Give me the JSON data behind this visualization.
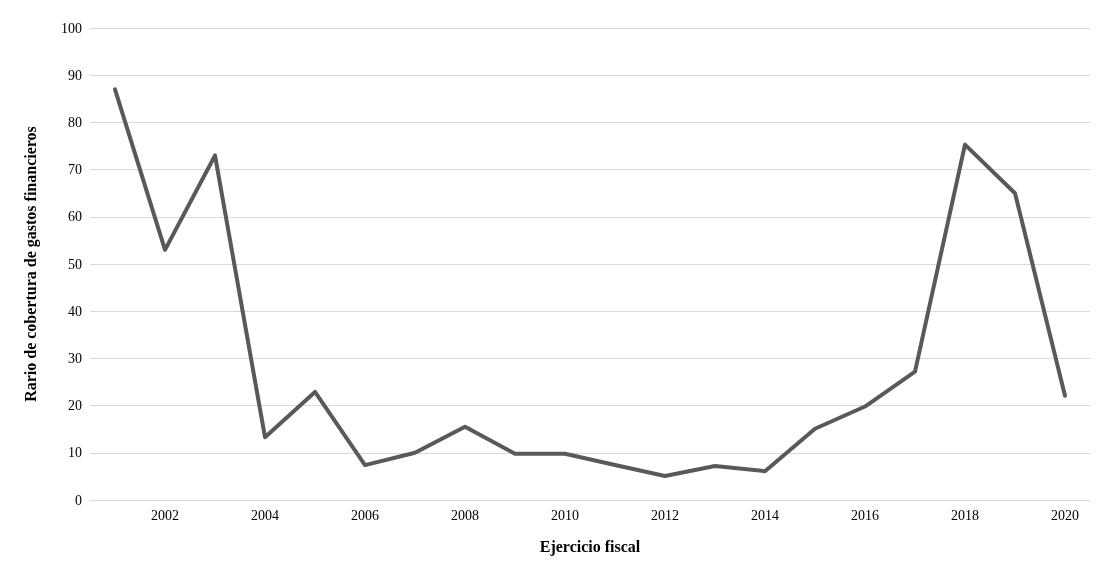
{
  "chart_data": {
    "type": "line",
    "xlabel": "Ejercicio fiscal",
    "ylabel": "Rario de cobertura de gastos financieros",
    "categories": [
      null,
      "2002",
      null,
      "2004",
      null,
      "2006",
      null,
      "2008",
      null,
      "2010",
      null,
      "2012",
      null,
      "2014",
      null,
      "2016",
      null,
      "2018",
      null,
      "2020"
    ],
    "series": [
      {
        "color": "#595959",
        "values": [
          87,
          53,
          73,
          13.3,
          22.9,
          7.4,
          10,
          15.5,
          9.8,
          9.8,
          7.4,
          5.1,
          7.2,
          6.1,
          15.1,
          19.8,
          27.2,
          75.3,
          65,
          22.1
        ]
      }
    ],
    "ylim": [
      0,
      100
    ],
    "yticks": [
      0,
      10,
      20,
      30,
      40,
      50,
      60,
      70,
      80,
      90,
      100
    ],
    "grid": "y",
    "marker": "none",
    "line_style": "solid"
  }
}
